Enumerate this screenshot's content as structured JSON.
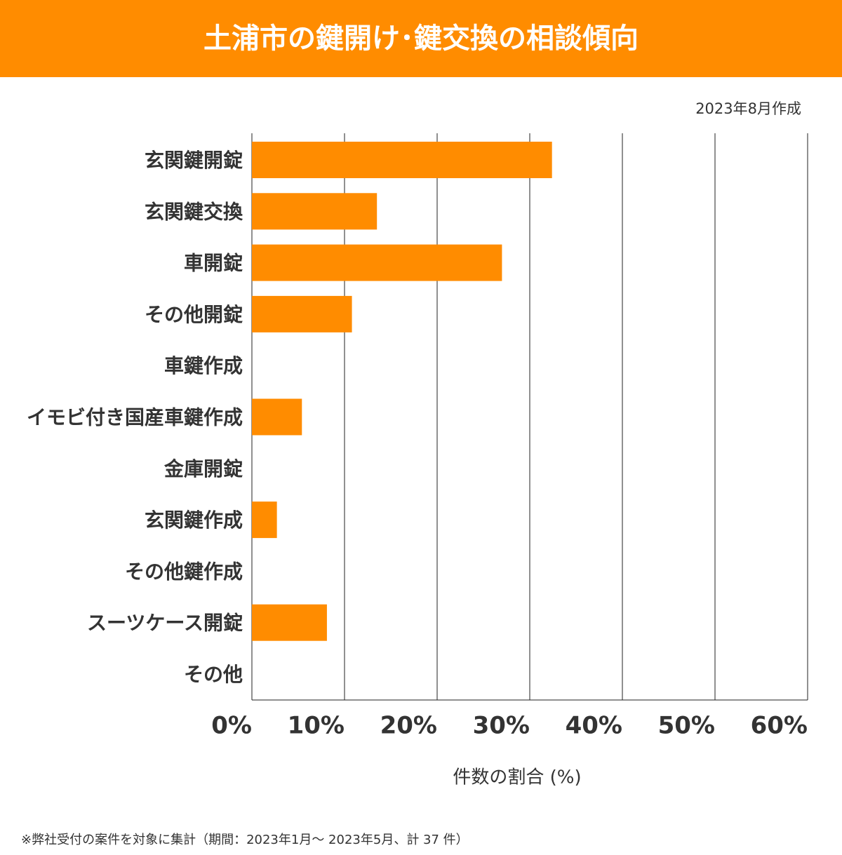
{
  "chart_data": {
    "type": "bar",
    "orientation": "horizontal",
    "title": "土浦市の鍵開け･鍵交換の相談傾向",
    "subtitle": "2023年8月作成",
    "x_label": "件数の割合 (%)",
    "footnote": "※弊社受付の案件を対象に集計（期間：2023年1月～ 2023年5月、計 37 件）",
    "categories": [
      "玄関鍵開錠",
      "玄関鍵交換",
      "車開錠",
      "その他開錠",
      "車鍵作成",
      "イモビ付き国産車鍵作成",
      "金庫開錠",
      "玄関鍵作成",
      "その他鍵作成",
      "スーツケース開錠",
      "その他"
    ],
    "values": [
      32.4,
      13.5,
      27.0,
      10.8,
      0,
      5.4,
      0,
      2.7,
      0,
      8.1,
      0
    ],
    "color": "#ff8c00",
    "xlim": [
      0,
      60
    ],
    "xticks": [
      {
        "value": 0,
        "label": "0%"
      },
      {
        "value": 10,
        "label": "10%"
      },
      {
        "value": 20,
        "label": "20%"
      },
      {
        "value": 30,
        "label": "30%"
      },
      {
        "value": 40,
        "label": "40%"
      },
      {
        "value": 50,
        "label": "50%"
      },
      {
        "value": 60,
        "label": "60%"
      }
    ],
    "grid": true
  }
}
